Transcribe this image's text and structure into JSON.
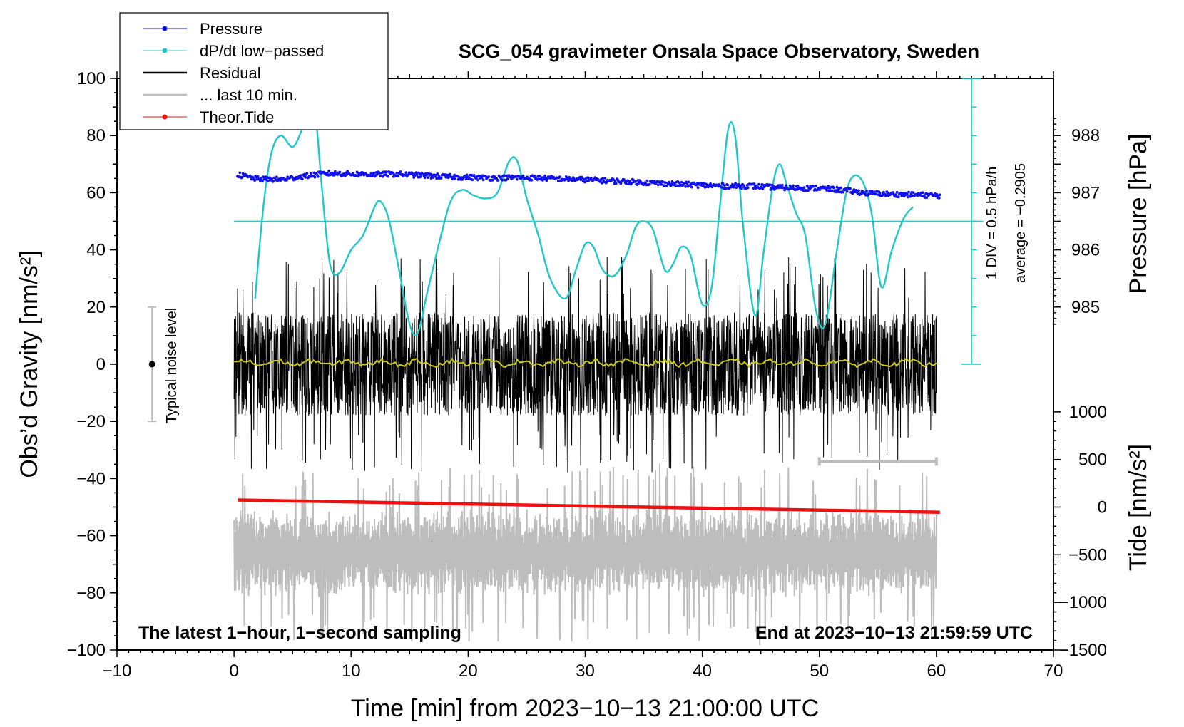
{
  "chart_data": {
    "type": "line",
    "title": "SCG_054 gravimeter Onsala Space Observatory, Sweden",
    "xlabel": "Time [min] from 2023−10−13 21:00:00 UTC",
    "ylabel_left": "Obs’d Gravity [nm/s²]",
    "ylabel_right_top": "Pressure [hPa]",
    "ylabel_right_bottom": "Tide [nm/s²]",
    "xlim": [
      -10,
      70
    ],
    "ylim_left": [
      -100,
      100
    ],
    "x_ticks": [
      "−10",
      "0",
      "10",
      "20",
      "30",
      "40",
      "50",
      "60",
      "70"
    ],
    "x_tick_values": [
      -10,
      0,
      10,
      20,
      30,
      40,
      50,
      60,
      70
    ],
    "y_ticks_left": [
      "100",
      "80",
      "60",
      "40",
      "20",
      "0",
      "−20",
      "−40",
      "−60",
      "−80",
      "−100"
    ],
    "y_tick_values_left": [
      100,
      80,
      60,
      40,
      20,
      0,
      -20,
      -40,
      -60,
      -80,
      -100
    ],
    "pressure_axis": {
      "ticks": [
        "988",
        "987",
        "986",
        "985"
      ],
      "tick_values": [
        988,
        987,
        986,
        985
      ],
      "gravity_equivalent": [
        80,
        60,
        40,
        20
      ]
    },
    "tide_axis": {
      "ticks": [
        "1000",
        "500",
        "0",
        "−500",
        "−1000",
        "−1500"
      ],
      "tick_values": [
        1000,
        500,
        0,
        -500,
        -1000,
        -1500
      ],
      "gravity_equivalent": [
        -16.7,
        -33.3,
        -50,
        -66.7,
        -83.3,
        -100
      ]
    },
    "legend": {
      "position": "top-left",
      "entries": [
        {
          "label": "Pressure",
          "color": "#1010f0",
          "marker": true
        },
        {
          "label": "dP/dt low−passed",
          "color": "#20c8c8",
          "marker": true
        },
        {
          "label": "Residual",
          "color": "#000000",
          "marker": false
        },
        {
          "label": "... last 10 min.",
          "color": "#bdbdbd",
          "marker": false
        },
        {
          "label": "Theor.Tide",
          "color": "#ee1010",
          "marker": true
        }
      ]
    },
    "annotations": {
      "bottom_left": "The latest 1−hour, 1−second sampling",
      "bottom_right": "End at 2023−10−13 21:59:59 UTC",
      "noise_label": "Typical noise level",
      "scale_label": "1 DIV = 0.5 hPa/h",
      "average_label": "average = −0.2905"
    },
    "noise_bar": {
      "x": -7,
      "low": -20,
      "high": 20
    },
    "last10_bar": {
      "x_start": 50,
      "x_end": 60,
      "y": -34
    },
    "dpdt_baseline": 50,
    "dpdt_scale_axis": {
      "x": 63,
      "ymin": 0,
      "ymax": 100,
      "div": 10
    },
    "series": [
      {
        "name": "Pressure",
        "color": "#1010f0",
        "x": [
          0.3,
          2,
          4,
          6,
          8,
          10,
          12,
          14,
          16,
          18,
          20,
          22,
          24,
          26,
          28,
          30,
          32,
          34,
          36,
          38,
          40,
          42,
          44,
          46,
          48,
          50,
          52,
          54,
          56,
          58,
          60.3
        ],
        "y": [
          66.3,
          64.8,
          64.6,
          65.8,
          66.8,
          66.6,
          66.4,
          66.5,
          66.1,
          65.6,
          65.4,
          65.2,
          65.3,
          65.2,
          64.8,
          64.6,
          64.2,
          63.8,
          63.4,
          63.0,
          62.6,
          62.3,
          62.4,
          61.9,
          61.7,
          61.6,
          60.9,
          59.9,
          59.5,
          59.3,
          59.0
        ],
        "scatter_amp": 0.9
      },
      {
        "name": "dP/dt low−passed",
        "color": "#20c8c8",
        "x": [
          1.8,
          2.5,
          3.2,
          4,
          5,
          5.8,
          6.5,
          7.0,
          7.5,
          8.2,
          9,
          10,
          11,
          12,
          12.5,
          13.2,
          14,
          15,
          15.7,
          16.5,
          17.5,
          18.5,
          19.5,
          20.5,
          21.5,
          22.5,
          23.5,
          24.2,
          25,
          26,
          27,
          28.3,
          29.2,
          30,
          30.7,
          31.5,
          32.5,
          33.5,
          34.3,
          35.0,
          35.8,
          36.8,
          37.5,
          38.2,
          39,
          40,
          40.8,
          41.5,
          42.2,
          42.8,
          43.5,
          44.5,
          45.2,
          46,
          46.6,
          47.2,
          48,
          48.8,
          49.7,
          50.5,
          51.5,
          52.3,
          53,
          53.8,
          54.5,
          55.3,
          56.2,
          57.2,
          58
        ],
        "y": [
          23,
          55,
          74,
          80,
          76,
          82,
          88,
          85,
          62,
          35,
          32,
          40,
          45,
          55,
          57,
          51,
          35,
          14,
          11,
          25,
          42,
          57,
          61,
          59,
          58,
          60,
          71,
          71,
          58,
          45,
          30,
          23,
          33,
          42,
          41,
          33,
          31,
          38,
          48,
          50,
          47,
          33,
          35,
          41,
          38,
          21,
          27,
          55,
          82,
          80,
          48,
          17,
          38,
          62,
          70,
          63,
          53,
          45,
          19,
          14,
          40,
          60,
          66,
          63,
          52,
          27,
          40,
          51,
          55
        ]
      },
      {
        "name": "Residual",
        "color": "#000000",
        "x_range": [
          0,
          60
        ],
        "center": 0,
        "typical_amplitude": 18,
        "max_amplitude": 38
      },
      {
        "name": "Residual low−passed",
        "color": "#c8c820",
        "x_range": [
          0,
          60
        ],
        "center": 0.5,
        "amplitude": 1.5
      },
      {
        "name": "... last 10 min.",
        "color": "#bdbdbd",
        "x_range": [
          0,
          60
        ],
        "center": -66,
        "typical_amplitude": 10,
        "max_amplitude": 31
      },
      {
        "name": "Theor.Tide",
        "color": "#ee1010",
        "x": [
          0.3,
          60.3
        ],
        "y": [
          -47.5,
          -51.8
        ]
      }
    ]
  }
}
